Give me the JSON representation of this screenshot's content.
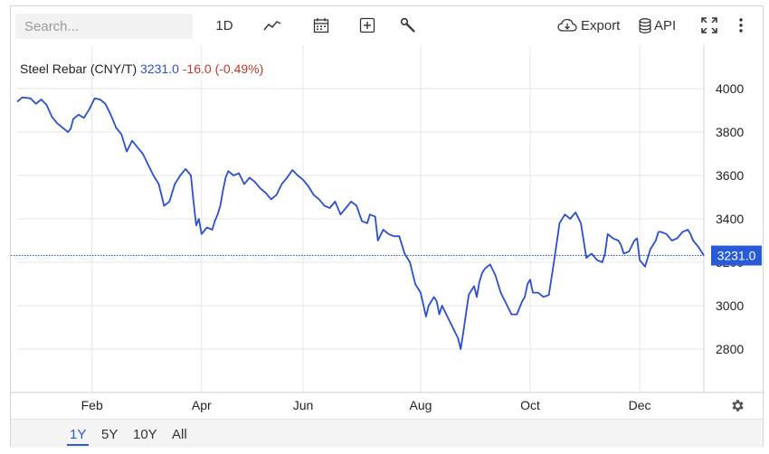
{
  "toolbar": {
    "search_placeholder": "Search...",
    "interval_label": "1D",
    "export_label": "Export",
    "api_label": "API",
    "icons": [
      "line-chart-icon",
      "calendar-icon",
      "plus-square-icon",
      "wrench-icon",
      "cloud-download-icon",
      "database-icon",
      "fullscreen-icon",
      "more-vertical-icon",
      "gear-icon"
    ]
  },
  "legend": {
    "instrument": "Steel Rebar (CNY/T)",
    "price": "3231.0",
    "change": "-16.0 (-0.49%)"
  },
  "colors": {
    "line": "#2a4fcf",
    "price": "#2a4fcf",
    "change": "#c0392b",
    "last_badge": "#2a5bd7",
    "grid": "#e6e6e6"
  },
  "range_tabs": [
    {
      "label": "1Y",
      "active": true
    },
    {
      "label": "5Y",
      "active": false
    },
    {
      "label": "10Y",
      "active": false
    },
    {
      "label": "All",
      "active": false
    }
  ],
  "chart_data": {
    "type": "line",
    "y_axis": {
      "position": "right",
      "ylim": [
        2600,
        4200
      ],
      "ticks": [
        2800,
        3000,
        3200,
        3400,
        3600,
        3800,
        4000
      ]
    },
    "x_axis": {
      "ticks": [
        {
          "label": "Feb",
          "t": 1.4
        },
        {
          "label": "Apr",
          "t": 3.45
        },
        {
          "label": "Jun",
          "t": 5.35
        },
        {
          "label": "Aug",
          "t": 7.55
        },
        {
          "label": "Oct",
          "t": 9.6
        },
        {
          "label": "Dec",
          "t": 11.65
        }
      ],
      "xlim": [
        0,
        12.85
      ]
    },
    "last_value": {
      "value": 3231.0,
      "label": "3231.0"
    },
    "grid": true,
    "series": [
      {
        "points": [
          [
            0.0,
            3940
          ],
          [
            0.1,
            3960
          ],
          [
            0.25,
            3955
          ],
          [
            0.35,
            3930
          ],
          [
            0.45,
            3950
          ],
          [
            0.55,
            3925
          ],
          [
            0.65,
            3870
          ],
          [
            0.75,
            3840
          ],
          [
            0.85,
            3820
          ],
          [
            0.95,
            3800
          ],
          [
            1.0,
            3815
          ],
          [
            1.05,
            3860
          ],
          [
            1.15,
            3880
          ],
          [
            1.25,
            3865
          ],
          [
            1.35,
            3905
          ],
          [
            1.45,
            3955
          ],
          [
            1.55,
            3950
          ],
          [
            1.65,
            3930
          ],
          [
            1.75,
            3880
          ],
          [
            1.85,
            3820
          ],
          [
            1.95,
            3790
          ],
          [
            2.05,
            3710
          ],
          [
            2.15,
            3760
          ],
          [
            2.25,
            3730
          ],
          [
            2.35,
            3700
          ],
          [
            2.45,
            3650
          ],
          [
            2.55,
            3600
          ],
          [
            2.65,
            3560
          ],
          [
            2.75,
            3460
          ],
          [
            2.85,
            3480
          ],
          [
            2.95,
            3560
          ],
          [
            3.05,
            3600
          ],
          [
            3.15,
            3630
          ],
          [
            3.25,
            3600
          ],
          [
            3.3,
            3480
          ],
          [
            3.35,
            3370
          ],
          [
            3.4,
            3400
          ],
          [
            3.45,
            3330
          ],
          [
            3.55,
            3360
          ],
          [
            3.65,
            3350
          ],
          [
            3.7,
            3390
          ],
          [
            3.75,
            3420
          ],
          [
            3.8,
            3460
          ],
          [
            3.85,
            3530
          ],
          [
            3.9,
            3590
          ],
          [
            3.95,
            3620
          ],
          [
            4.05,
            3600
          ],
          [
            4.15,
            3610
          ],
          [
            4.25,
            3560
          ],
          [
            4.35,
            3590
          ],
          [
            4.45,
            3570
          ],
          [
            4.55,
            3540
          ],
          [
            4.65,
            3520
          ],
          [
            4.75,
            3490
          ],
          [
            4.85,
            3510
          ],
          [
            4.95,
            3560
          ],
          [
            5.05,
            3590
          ],
          [
            5.15,
            3625
          ],
          [
            5.25,
            3600
          ],
          [
            5.35,
            3580
          ],
          [
            5.45,
            3550
          ],
          [
            5.55,
            3510
          ],
          [
            5.65,
            3490
          ],
          [
            5.75,
            3460
          ],
          [
            5.85,
            3450
          ],
          [
            5.95,
            3480
          ],
          [
            6.05,
            3420
          ],
          [
            6.15,
            3450
          ],
          [
            6.25,
            3480
          ],
          [
            6.35,
            3460
          ],
          [
            6.45,
            3390
          ],
          [
            6.55,
            3380
          ],
          [
            6.6,
            3420
          ],
          [
            6.7,
            3410
          ],
          [
            6.75,
            3300
          ],
          [
            6.85,
            3350
          ],
          [
            6.95,
            3330
          ],
          [
            7.05,
            3320
          ],
          [
            7.15,
            3320
          ],
          [
            7.25,
            3240
          ],
          [
            7.35,
            3200
          ],
          [
            7.45,
            3100
          ],
          [
            7.55,
            3060
          ],
          [
            7.65,
            2950
          ],
          [
            7.7,
            3000
          ],
          [
            7.8,
            3040
          ],
          [
            7.85,
            3020
          ],
          [
            7.9,
            2960
          ],
          [
            7.95,
            3000
          ],
          [
            8.05,
            2950
          ],
          [
            8.15,
            2900
          ],
          [
            8.25,
            2850
          ],
          [
            8.3,
            2800
          ],
          [
            8.35,
            2880
          ],
          [
            8.45,
            3050
          ],
          [
            8.55,
            3090
          ],
          [
            8.6,
            3040
          ],
          [
            8.65,
            3110
          ],
          [
            8.7,
            3150
          ],
          [
            8.75,
            3170
          ],
          [
            8.85,
            3190
          ],
          [
            8.95,
            3140
          ],
          [
            9.05,
            3060
          ],
          [
            9.15,
            3010
          ],
          [
            9.25,
            2960
          ],
          [
            9.35,
            2960
          ],
          [
            9.45,
            3020
          ],
          [
            9.5,
            3040
          ],
          [
            9.55,
            3100
          ],
          [
            9.6,
            3120
          ],
          [
            9.65,
            3060
          ],
          [
            9.75,
            3060
          ],
          [
            9.85,
            3040
          ],
          [
            9.95,
            3050
          ],
          [
            10.05,
            3210
          ],
          [
            10.15,
            3380
          ],
          [
            10.25,
            3420
          ],
          [
            10.35,
            3400
          ],
          [
            10.45,
            3430
          ],
          [
            10.55,
            3380
          ],
          [
            10.65,
            3220
          ],
          [
            10.75,
            3240
          ],
          [
            10.85,
            3210
          ],
          [
            10.95,
            3200
          ],
          [
            11.0,
            3240
          ],
          [
            11.05,
            3330
          ],
          [
            11.15,
            3310
          ],
          [
            11.25,
            3300
          ],
          [
            11.3,
            3280
          ],
          [
            11.35,
            3240
          ],
          [
            11.45,
            3250
          ],
          [
            11.55,
            3300
          ],
          [
            11.6,
            3310
          ],
          [
            11.65,
            3210
          ],
          [
            11.75,
            3180
          ],
          [
            11.85,
            3260
          ],
          [
            11.95,
            3300
          ],
          [
            12.0,
            3340
          ],
          [
            12.05,
            3340
          ],
          [
            12.15,
            3330
          ],
          [
            12.25,
            3300
          ],
          [
            12.35,
            3310
          ],
          [
            12.45,
            3340
          ],
          [
            12.55,
            3350
          ],
          [
            12.6,
            3330
          ],
          [
            12.65,
            3300
          ],
          [
            12.75,
            3270
          ],
          [
            12.85,
            3231
          ]
        ]
      }
    ]
  }
}
